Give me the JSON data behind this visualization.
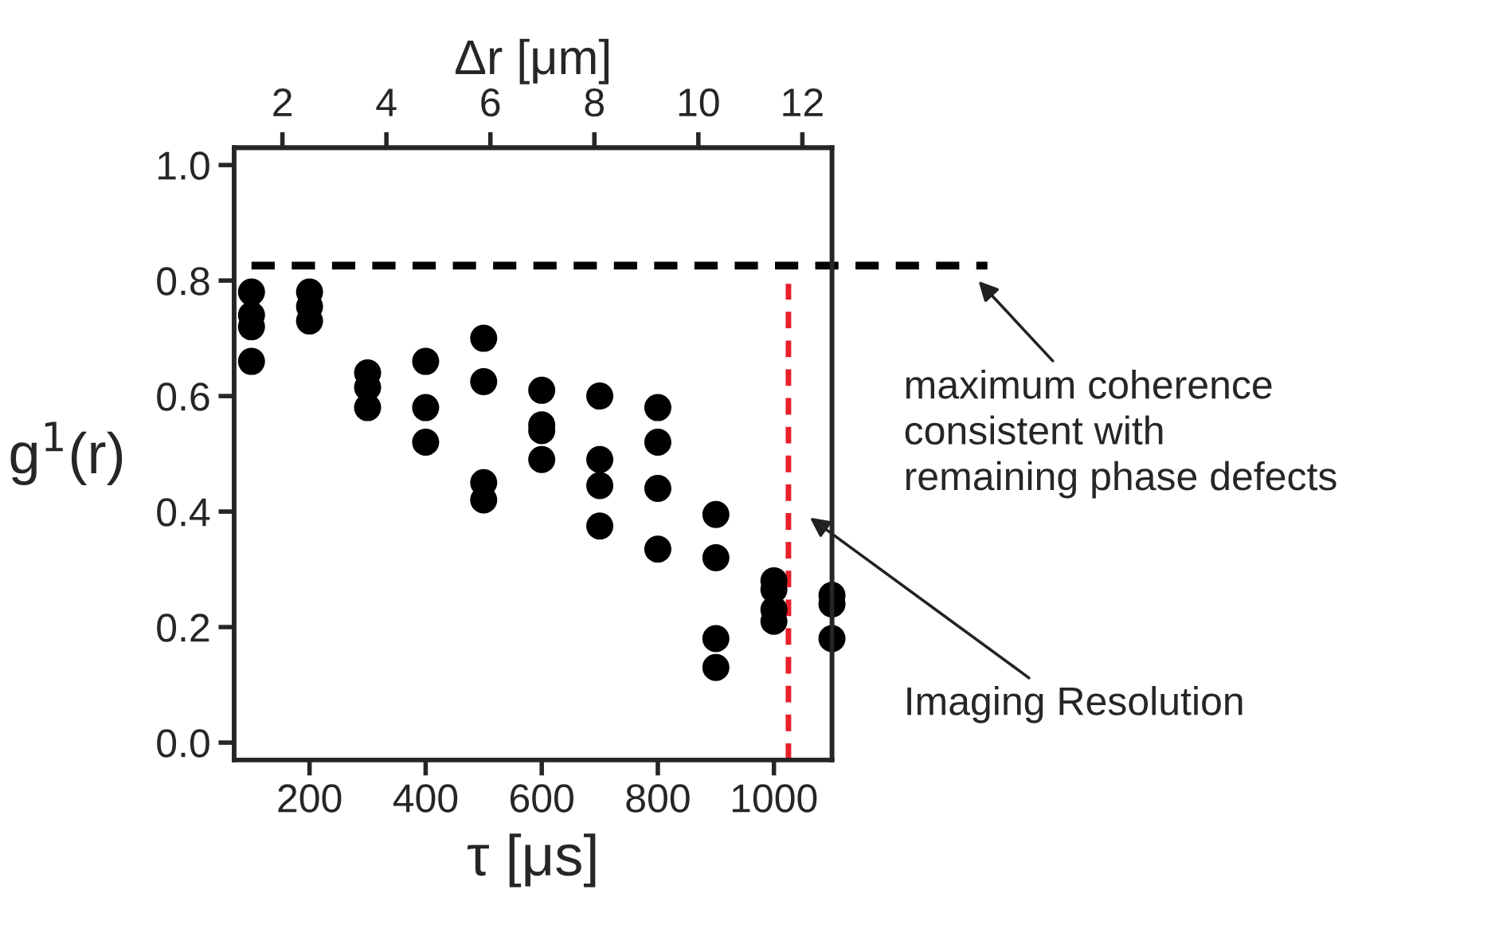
{
  "chart_data": {
    "type": "scatter",
    "xlabel": "τ [μs]",
    "ylabel": "g$^{1}$(r)",
    "x2label": "Δr [μm]",
    "series": [
      {
        "color": "#000000",
        "x": [
          100,
          100,
          100,
          100,
          200,
          200,
          200,
          300,
          300,
          300,
          400,
          400,
          400,
          500,
          500,
          500,
          500,
          600,
          600,
          600,
          600,
          700,
          700,
          700,
          700,
          800,
          800,
          800,
          800,
          900,
          900,
          900,
          900,
          1000,
          1000,
          1000,
          1000,
          1100,
          1100,
          1100
        ],
        "values": [
          0.78,
          0.74,
          0.72,
          0.66,
          0.78,
          0.755,
          0.73,
          0.64,
          0.615,
          0.58,
          0.66,
          0.58,
          0.52,
          0.7,
          0.625,
          0.45,
          0.42,
          0.61,
          0.55,
          0.54,
          0.49,
          0.6,
          0.49,
          0.445,
          0.375,
          0.58,
          0.52,
          0.44,
          0.335,
          0.395,
          0.32,
          0.18,
          0.13,
          0.28,
          0.265,
          0.23,
          0.21,
          0.255,
          0.24,
          0.18
        ]
      }
    ],
    "marker": "circle",
    "xlim": [
      70,
      1100
    ],
    "xticks": [
      200,
      400,
      600,
      800,
      1000
    ],
    "ylim": [
      -0.03,
      1.03
    ],
    "yticks": [
      {
        "value": 0,
        "label": "0.0"
      },
      {
        "value": 0.2,
        "label": "0.2"
      },
      {
        "value": 0.4,
        "label": "0.4"
      },
      {
        "value": 0.6,
        "label": "0.6"
      },
      {
        "value": 0.8,
        "label": "0.8"
      },
      {
        "value": 1.0,
        "label": "1.0"
      }
    ],
    "x2lim": [
      1.07,
      12.57
    ],
    "x2ticks": [
      2,
      4,
      6,
      8,
      10,
      12
    ],
    "ref_lines": [
      {
        "axis": "y",
        "value": 0.826,
        "label": "maximum coherence\nconsistent with\nremaining phase defects",
        "color": "#000000",
        "line_style": "dashed"
      },
      {
        "axis": "x",
        "value": 1025,
        "label": "Imaging Resolution",
        "color": "#e8202a",
        "line_style": "dashed"
      }
    ],
    "grid": false
  }
}
